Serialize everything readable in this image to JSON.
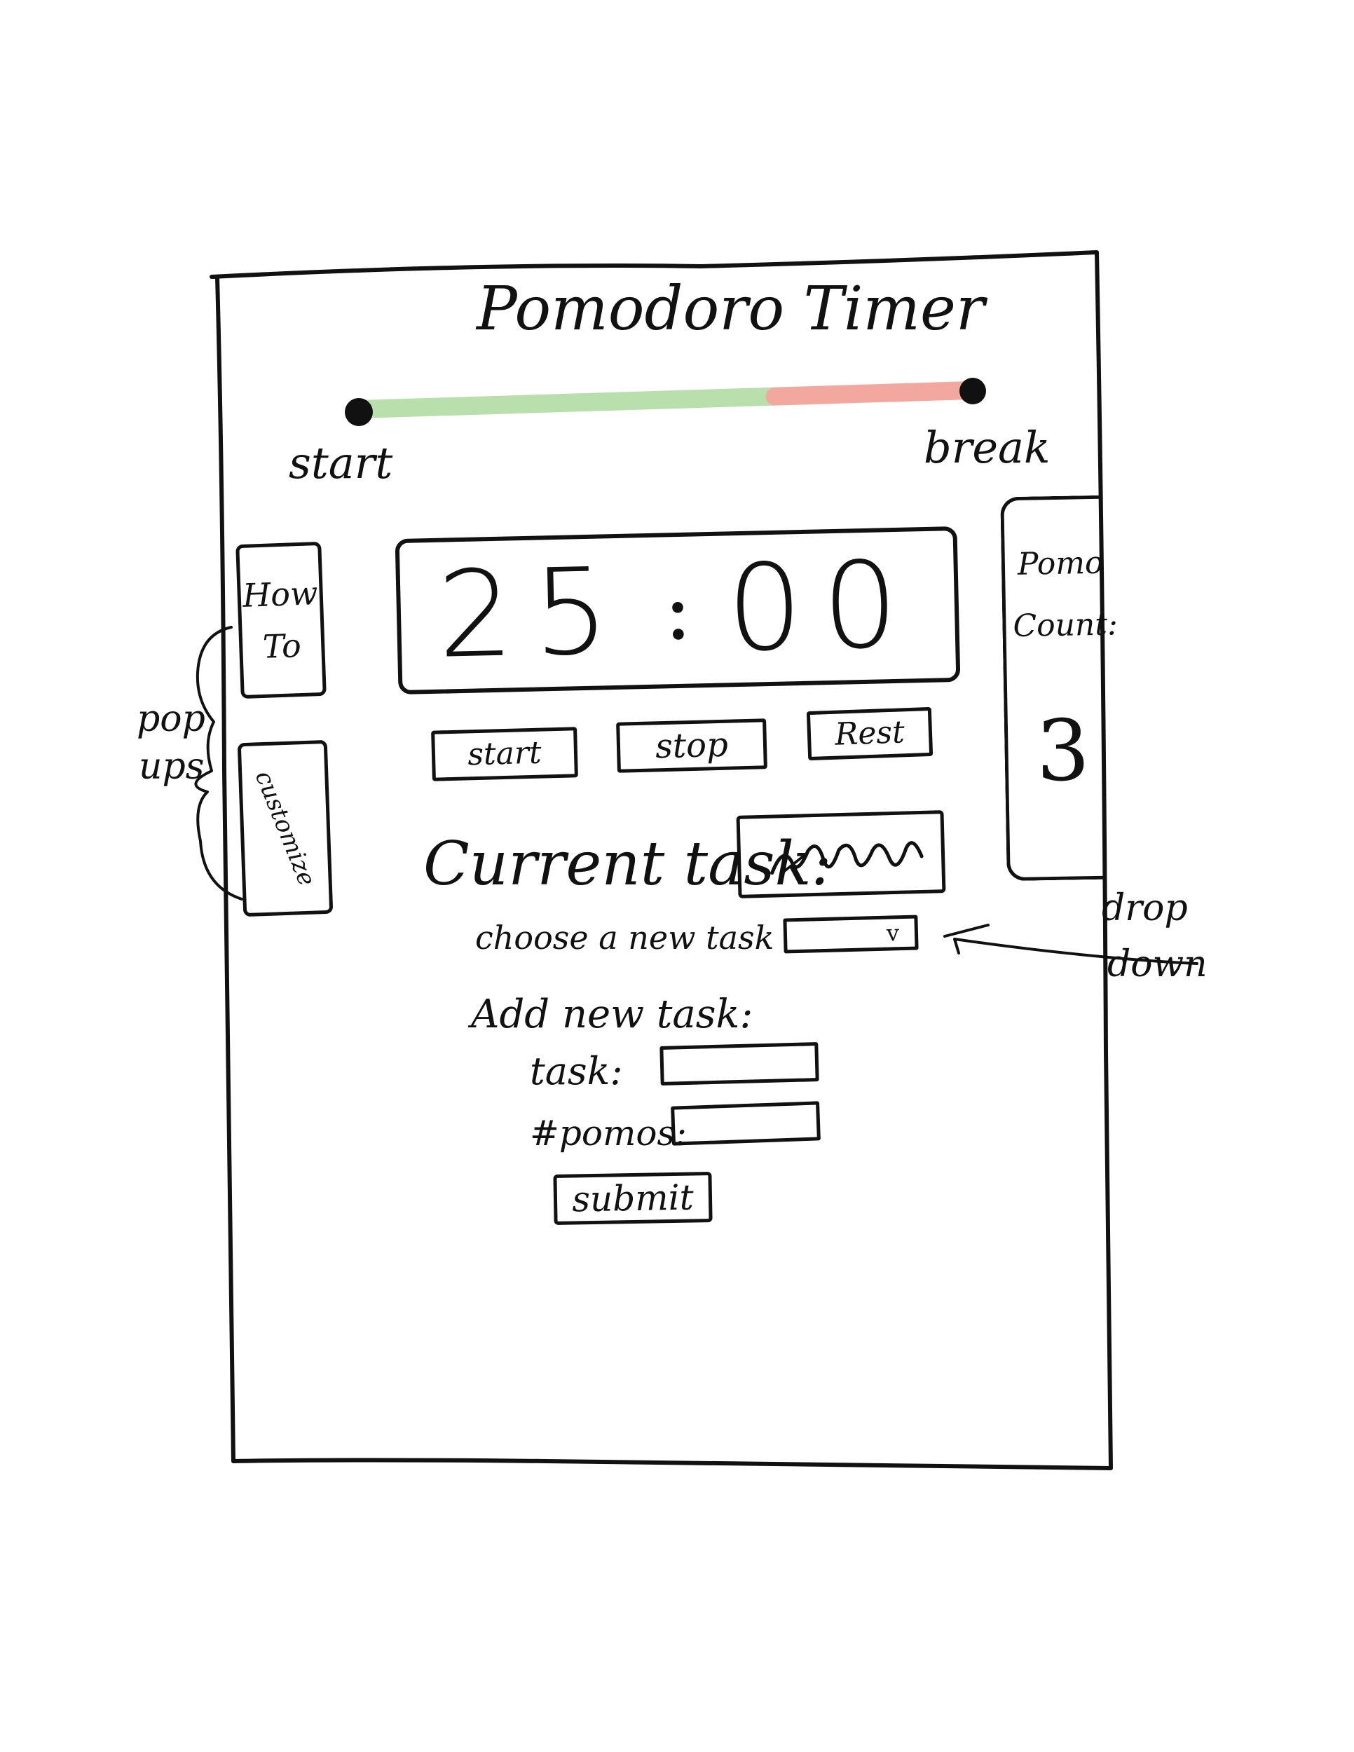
{
  "app": {
    "title": "Pomodoro Timer"
  },
  "progress": {
    "start_label": "start",
    "break_label": "break",
    "fraction_work_done": 0.68,
    "colors": {
      "work": "#b9dfad",
      "break": "#f3a89f",
      "knob": "#111111"
    }
  },
  "sidebar": {
    "how_to": {
      "line1": "How",
      "line2": "To"
    },
    "customize": "customize"
  },
  "timer": {
    "minutes": "25",
    "separator": ":",
    "seconds": "00"
  },
  "controls": {
    "start": "start",
    "stop": "stop",
    "reset": "Rest"
  },
  "pomo_count": {
    "label_line1": "Pomo",
    "label_line2": "Count:",
    "value": "3"
  },
  "current_task": {
    "label": "Current task:"
  },
  "choose_task": {
    "label": "choose a new task",
    "chevron": "v"
  },
  "add_task": {
    "heading": "Add new task:",
    "task_label": "task:",
    "pomos_label": "#pomos:",
    "submit": "submit"
  },
  "annotations": {
    "popups_line1": "pop",
    "popups_line2": "ups",
    "dropdown_line1": "drop",
    "dropdown_line2": "down"
  }
}
